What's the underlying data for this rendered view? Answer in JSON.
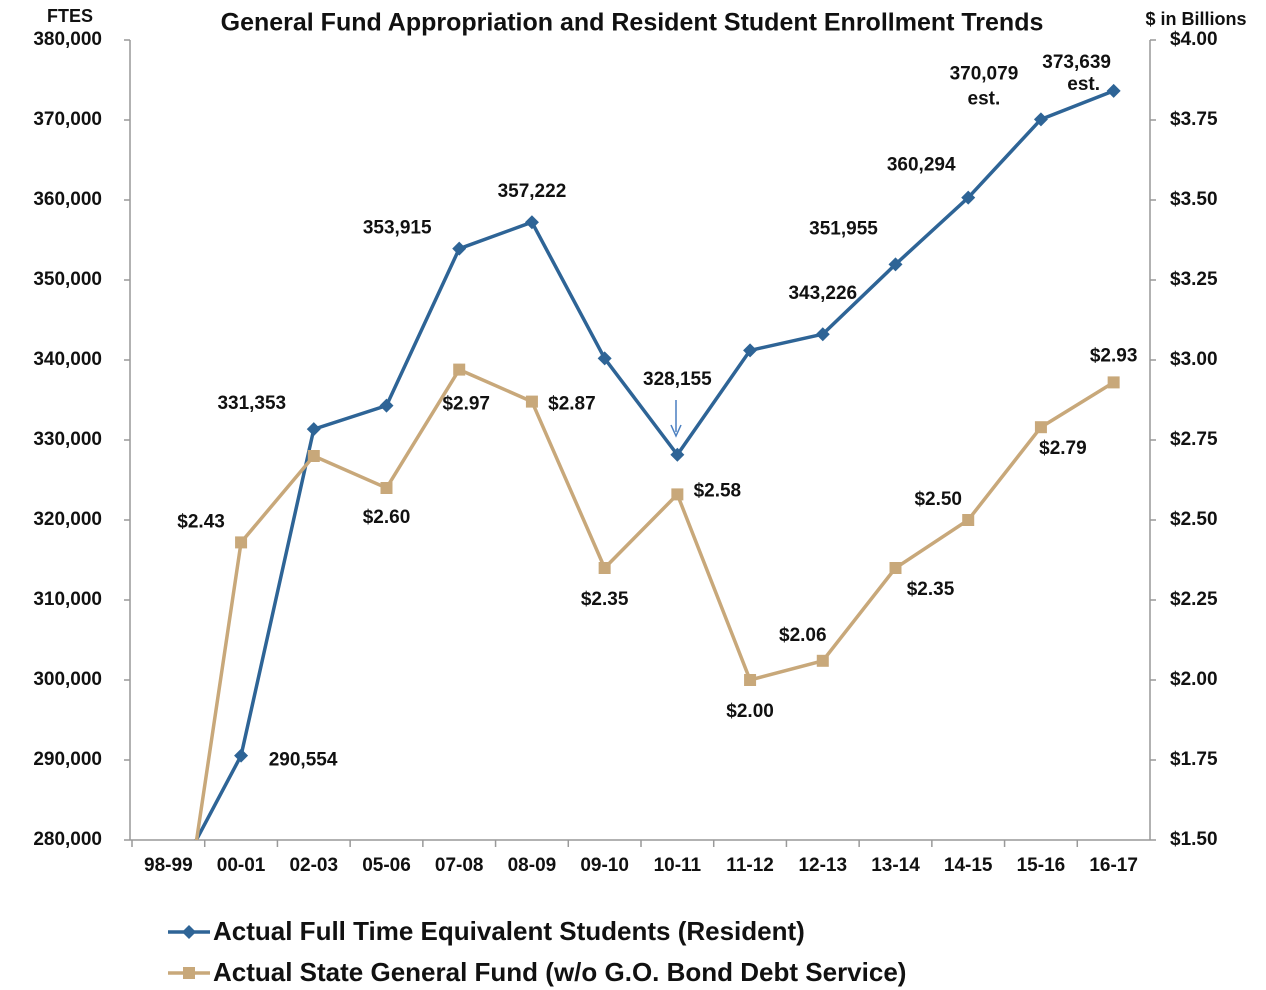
{
  "chart_data": {
    "type": "line",
    "title": "General Fund Appropriation and Resident Student Enrollment Trends",
    "y_label": "FTES",
    "y2_label": "$ in Billions",
    "categories": [
      "98-99",
      "00-01",
      "02-03",
      "05-06",
      "07-08",
      "08-09",
      "09-10",
      "10-11",
      "11-12",
      "12-13",
      "13-14",
      "14-15",
      "15-16",
      "16-17"
    ],
    "series": [
      {
        "name": "Actual Full Time Equivalent Students (Resident)",
        "color": "#2e6496",
        "marker": "diamond",
        "values": [
          273400,
          290554,
          331353,
          334300,
          353915,
          357222,
          340200,
          328155,
          341200,
          343226,
          351955,
          360294,
          370079,
          373639
        ],
        "value_labels": [
          null,
          "290,554",
          "331,353",
          null,
          "353,915",
          "357,222",
          null,
          "328,155",
          null,
          "343,226",
          "351,955",
          "360,294",
          "370,079",
          "373,639"
        ]
      },
      {
        "name": "Actual State General Fund (w/o G.O. Bond Debt Service)",
        "color": "#c8a87a",
        "marker": "square",
        "axis": "y2",
        "values": [
          0.91,
          2.43,
          2.7,
          2.6,
          2.97,
          2.87,
          2.35,
          2.58,
          2.0,
          2.06,
          2.35,
          2.5,
          2.79,
          2.93
        ],
        "value_labels": [
          null,
          "$2.43",
          null,
          "$2.60",
          "$2.97",
          "$2.87",
          "$2.35",
          "$2.58",
          "$2.00",
          "$2.06",
          "$2.35",
          "$2.50",
          "$2.79",
          "$2.93"
        ]
      }
    ],
    "annotations": [
      "est.",
      "est."
    ],
    "ylim": [
      280000,
      380000
    ],
    "yticks": [
      {
        "value": 280000,
        "label": "280,000"
      },
      {
        "value": 290000,
        "label": "290,000"
      },
      {
        "value": 300000,
        "label": "300,000"
      },
      {
        "value": 310000,
        "label": "310,000"
      },
      {
        "value": 320000,
        "label": "320,000"
      },
      {
        "value": 330000,
        "label": "330,000"
      },
      {
        "value": 340000,
        "label": "340,000"
      },
      {
        "value": 350000,
        "label": "350,000"
      },
      {
        "value": 360000,
        "label": "360,000"
      },
      {
        "value": 370000,
        "label": "370,000"
      },
      {
        "value": 380000,
        "label": "380,000"
      }
    ],
    "y2lim": [
      1.5,
      4.0
    ],
    "y2ticks": [
      {
        "value": 1.5,
        "label": "$1.50"
      },
      {
        "value": 1.75,
        "label": "$1.75"
      },
      {
        "value": 2.0,
        "label": "$2.00"
      },
      {
        "value": 2.25,
        "label": "$2.25"
      },
      {
        "value": 2.5,
        "label": "$2.50"
      },
      {
        "value": 2.75,
        "label": "$2.75"
      },
      {
        "value": 3.0,
        "label": "$3.00"
      },
      {
        "value": 3.25,
        "label": "$3.25"
      },
      {
        "value": 3.5,
        "label": "$3.50"
      },
      {
        "value": 3.75,
        "label": "$3.75"
      },
      {
        "value": 4.0,
        "label": "$4.00"
      }
    ],
    "grid": false,
    "legend": "bottom-left"
  }
}
